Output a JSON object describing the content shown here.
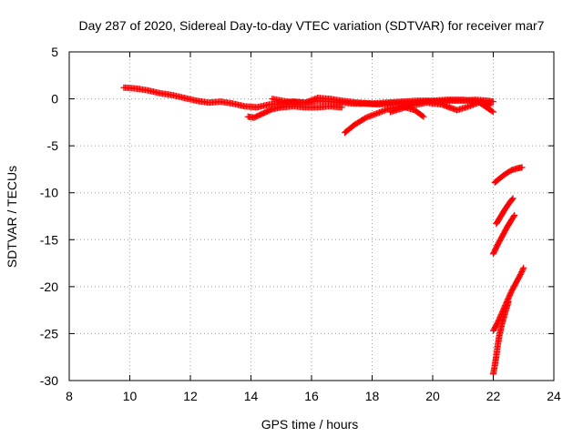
{
  "chart_data": {
    "type": "scatter",
    "title": "Day 287 of 2020, Sidereal Day-to-day VTEC variation (SDTVAR) for receiver mar7",
    "xlabel": "GPS time / hours",
    "ylabel": "SDTVAR / TECUs",
    "xlim": [
      8,
      24
    ],
    "ylim": [
      -30,
      5
    ],
    "xticks": [
      "8",
      "10",
      "12",
      "14",
      "16",
      "18",
      "20",
      "22",
      "24"
    ],
    "yticks": [
      "5",
      "0",
      "-5",
      "-10",
      "-15",
      "-20",
      "-25",
      "-30"
    ],
    "grid": true,
    "legend": "none",
    "marker": "plus",
    "color": "#ff0000",
    "series": [
      {
        "x": [
          9.8,
          10.2,
          10.6,
          11.0,
          11.4,
          11.8,
          12.2,
          12.6,
          13.0,
          13.4,
          13.8,
          14.2,
          14.6,
          15.0,
          15.4,
          15.8,
          16.2,
          16.6,
          17.0,
          17.4,
          17.8,
          18.2,
          18.6,
          19.0,
          19.4,
          19.8,
          20.2,
          20.6,
          21.0,
          21.4,
          21.8,
          22.0
        ],
        "y": [
          1.2,
          1.1,
          0.9,
          0.6,
          0.4,
          0.1,
          -0.2,
          -0.4,
          -0.3,
          -0.5,
          -0.8,
          -0.9,
          -0.6,
          -0.5,
          -0.3,
          -0.4,
          -0.2,
          -0.3,
          -0.4,
          -0.5,
          -0.5,
          -0.6,
          -0.5,
          -0.4,
          -0.4,
          -0.3,
          -0.3,
          -0.2,
          -0.2,
          -0.1,
          -0.2,
          -0.3
        ]
      },
      {
        "x": [
          13.9,
          14.1,
          14.3,
          14.5,
          14.7,
          15.0,
          15.4,
          15.8,
          16.2,
          16.6,
          17.0
        ],
        "y": [
          -1.9,
          -2.0,
          -1.7,
          -1.4,
          -1.1,
          -0.9,
          -0.8,
          -0.9,
          -0.9,
          -0.8,
          -0.9
        ]
      },
      {
        "x": [
          14.7,
          15.2,
          15.8,
          16.2,
          16.6,
          17.0,
          17.5,
          18.0,
          18.5,
          19.0,
          19.5,
          20.0,
          20.5,
          21.0,
          21.5,
          22.0
        ],
        "y": [
          0.0,
          -0.3,
          -0.4,
          0.1,
          0.0,
          -0.2,
          -0.4,
          -0.5,
          -0.4,
          -0.3,
          -0.2,
          -0.2,
          -0.1,
          -0.1,
          -0.3,
          -1.4
        ]
      },
      {
        "x": [
          17.1,
          17.4,
          17.8,
          18.2,
          18.6,
          19.0,
          19.4,
          19.7
        ],
        "y": [
          -3.6,
          -2.8,
          -2.0,
          -1.5,
          -1.0,
          -0.8,
          -1.2,
          -1.9
        ]
      },
      {
        "x": [
          18.6,
          19.2,
          19.8,
          20.3,
          20.8,
          21.2,
          21.6,
          21.9
        ],
        "y": [
          -1.4,
          -0.8,
          -0.4,
          -0.6,
          -1.2,
          -0.8,
          -0.3,
          -0.7
        ]
      },
      {
        "x": [
          22.05,
          22.2,
          22.4,
          22.6,
          22.8,
          22.95
        ],
        "y": [
          -8.9,
          -8.5,
          -8.0,
          -7.6,
          -7.4,
          -7.3
        ]
      },
      {
        "x": [
          22.1,
          22.25,
          22.4,
          22.55,
          22.65
        ],
        "y": [
          -13.3,
          -12.5,
          -11.7,
          -11.0,
          -10.6
        ]
      },
      {
        "x": [
          22.0,
          22.15,
          22.3,
          22.45,
          22.6,
          22.7
        ],
        "y": [
          -16.5,
          -15.5,
          -14.6,
          -13.7,
          -12.9,
          -12.4
        ]
      },
      {
        "x": [
          22.0,
          22.15,
          22.3,
          22.45,
          22.6,
          22.75,
          22.9,
          23.0
        ],
        "y": [
          -24.7,
          -23.8,
          -22.7,
          -21.6,
          -20.5,
          -19.6,
          -18.7,
          -18.0
        ]
      },
      {
        "x": [
          22.0,
          22.05,
          22.1,
          22.15,
          22.2,
          22.3,
          22.4,
          22.5
        ],
        "y": [
          -29.3,
          -28.4,
          -27.4,
          -26.2,
          -25.2,
          -23.8,
          -22.7,
          -21.6
        ]
      }
    ]
  }
}
